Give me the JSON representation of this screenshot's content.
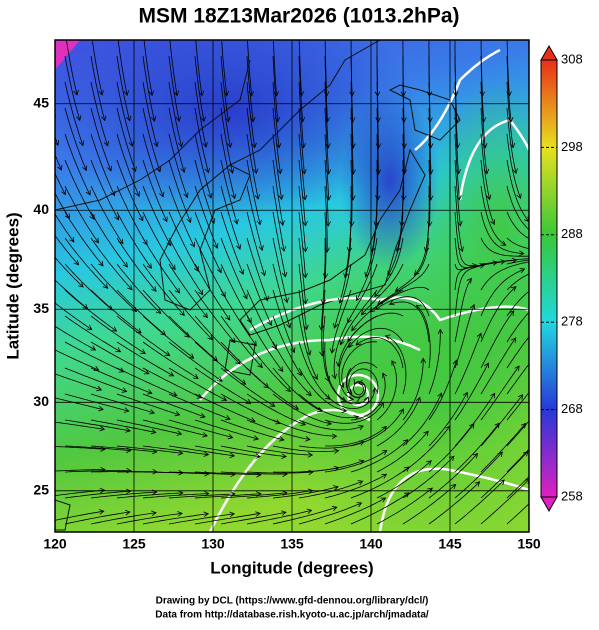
{
  "chart_data": {
    "type": "map",
    "title": "MSM 18Z13Mar2026 (1013.2hPa)",
    "xlabel": "Longitude (degrees)",
    "ylabel": "Latitude  (degrees)",
    "xlim": [
      120,
      150
    ],
    "xticks": [
      120,
      125,
      130,
      135,
      140,
      145,
      150
    ],
    "ylim": [
      22.6,
      47.8
    ],
    "yticks": [
      25,
      30,
      35,
      40,
      45
    ],
    "grid": true,
    "colorbar": {
      "lim": [
        258,
        308
      ],
      "ticks": [
        258,
        268,
        278,
        288,
        298,
        308
      ],
      "colors": [
        "#e020c0",
        "#2838d8",
        "#20d8e0",
        "#38c838",
        "#e8e020",
        "#e83018"
      ]
    },
    "credits": [
      "Drawing by DCL (https://www.gfd-dennou.org/library/dcl/)",
      "Data from http://database.rish.kyoto-u.ac.jp/arch/jmadata/"
    ]
  }
}
